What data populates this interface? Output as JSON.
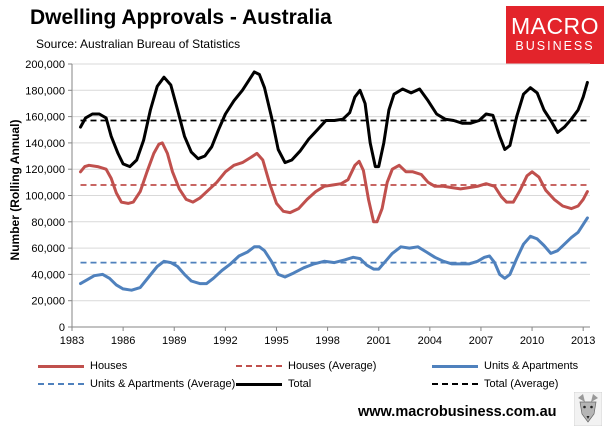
{
  "header": {
    "title": "Dwelling Approvals - Australia",
    "source": "Source: Australian Bureau of Statistics"
  },
  "logo": {
    "line1": "MACRO",
    "line2": "BUSINESS",
    "color": "#e3242b"
  },
  "footer": {
    "url": "www.macrobusiness.com.au"
  },
  "chart_data": {
    "type": "line",
    "ylabel": "Number (Rolling Annual)",
    "xlabel": "",
    "ylim": [
      0,
      200000
    ],
    "xlim": [
      1983,
      2013.4
    ],
    "y_ticks": [
      0,
      20000,
      40000,
      60000,
      80000,
      100000,
      120000,
      140000,
      160000,
      180000,
      200000
    ],
    "y_tick_labels": [
      "0",
      "20,000",
      "40,000",
      "60,000",
      "80,000",
      "100,000",
      "120,000",
      "140,000",
      "160,000",
      "180,000",
      "200,000"
    ],
    "x_ticks": [
      1983,
      1986,
      1989,
      1992,
      1995,
      1998,
      2001,
      2004,
      2007,
      2010,
      2013
    ],
    "x_tick_labels": [
      "1983",
      "1986",
      "1989",
      "1992",
      "1995",
      "1998",
      "2001",
      "2004",
      "2007",
      "2010",
      "2013"
    ],
    "grid": "horizontal",
    "legend_position": "bottom",
    "series": [
      {
        "name": "Houses",
        "color": "#c0504d",
        "style": "solid",
        "points": [
          [
            1983.5,
            118000
          ],
          [
            1983.75,
            122000
          ],
          [
            1984.0,
            123000
          ],
          [
            1984.5,
            122000
          ],
          [
            1985.0,
            120000
          ],
          [
            1985.3,
            113000
          ],
          [
            1985.6,
            102000
          ],
          [
            1985.9,
            95000
          ],
          [
            1986.3,
            94000
          ],
          [
            1986.6,
            95000
          ],
          [
            1987.0,
            103000
          ],
          [
            1987.4,
            118000
          ],
          [
            1987.8,
            132000
          ],
          [
            1988.1,
            139000
          ],
          [
            1988.3,
            140000
          ],
          [
            1988.6,
            132000
          ],
          [
            1988.9,
            118000
          ],
          [
            1989.3,
            105000
          ],
          [
            1989.7,
            97000
          ],
          [
            1990.1,
            95000
          ],
          [
            1990.5,
            98000
          ],
          [
            1991.0,
            104000
          ],
          [
            1991.5,
            110000
          ],
          [
            1992.0,
            118000
          ],
          [
            1992.5,
            123000
          ],
          [
            1993.0,
            125000
          ],
          [
            1993.5,
            129000
          ],
          [
            1993.85,
            132000
          ],
          [
            1994.2,
            127000
          ],
          [
            1994.6,
            109000
          ],
          [
            1995.0,
            94000
          ],
          [
            1995.4,
            88000
          ],
          [
            1995.8,
            87000
          ],
          [
            1996.3,
            90000
          ],
          [
            1996.8,
            97000
          ],
          [
            1997.3,
            103000
          ],
          [
            1997.8,
            107000
          ],
          [
            1998.3,
            108000
          ],
          [
            1998.8,
            109000
          ],
          [
            1999.2,
            112000
          ],
          [
            1999.6,
            123000
          ],
          [
            1999.85,
            126000
          ],
          [
            2000.1,
            119000
          ],
          [
            2000.4,
            97000
          ],
          [
            2000.7,
            80000
          ],
          [
            2000.9,
            80000
          ],
          [
            2001.2,
            90000
          ],
          [
            2001.5,
            110000
          ],
          [
            2001.8,
            120000
          ],
          [
            2002.2,
            123000
          ],
          [
            2002.6,
            118000
          ],
          [
            2003.0,
            118000
          ],
          [
            2003.5,
            116000
          ],
          [
            2003.9,
            110000
          ],
          [
            2004.3,
            107000
          ],
          [
            2004.8,
            107000
          ],
          [
            2005.3,
            106000
          ],
          [
            2005.8,
            105000
          ],
          [
            2006.3,
            106000
          ],
          [
            2006.8,
            107000
          ],
          [
            2007.3,
            109000
          ],
          [
            2007.8,
            107000
          ],
          [
            2008.2,
            99000
          ],
          [
            2008.5,
            95000
          ],
          [
            2008.9,
            95000
          ],
          [
            2009.3,
            104000
          ],
          [
            2009.7,
            115000
          ],
          [
            2010.0,
            118000
          ],
          [
            2010.4,
            114000
          ],
          [
            2010.8,
            104000
          ],
          [
            2011.3,
            97000
          ],
          [
            2011.8,
            92000
          ],
          [
            2012.3,
            90000
          ],
          [
            2012.7,
            92000
          ],
          [
            2013.0,
            97000
          ],
          [
            2013.25,
            103000
          ]
        ]
      },
      {
        "name": "Houses (Average)",
        "color": "#c0504d",
        "style": "dashed",
        "points": [
          [
            1983.5,
            108000
          ],
          [
            2013.25,
            108000
          ]
        ]
      },
      {
        "name": "Units & Apartments",
        "color": "#4f81bd",
        "style": "solid",
        "points": [
          [
            1983.5,
            33000
          ],
          [
            1983.9,
            36000
          ],
          [
            1984.3,
            39000
          ],
          [
            1984.8,
            40000
          ],
          [
            1985.2,
            37000
          ],
          [
            1985.6,
            32000
          ],
          [
            1986.0,
            29000
          ],
          [
            1986.5,
            28000
          ],
          [
            1987.0,
            30000
          ],
          [
            1987.5,
            38000
          ],
          [
            1988.0,
            46000
          ],
          [
            1988.4,
            50000
          ],
          [
            1988.8,
            49000
          ],
          [
            1989.2,
            46000
          ],
          [
            1989.6,
            40000
          ],
          [
            1990.0,
            35000
          ],
          [
            1990.5,
            33000
          ],
          [
            1990.9,
            33000
          ],
          [
            1991.3,
            37000
          ],
          [
            1991.8,
            43000
          ],
          [
            1992.3,
            48000
          ],
          [
            1992.8,
            54000
          ],
          [
            1993.3,
            57000
          ],
          [
            1993.7,
            61000
          ],
          [
            1994.0,
            61000
          ],
          [
            1994.3,
            58000
          ],
          [
            1994.7,
            50000
          ],
          [
            1995.1,
            40000
          ],
          [
            1995.5,
            38000
          ],
          [
            1996.0,
            41000
          ],
          [
            1996.6,
            45000
          ],
          [
            1997.2,
            48000
          ],
          [
            1997.8,
            50000
          ],
          [
            1998.4,
            49000
          ],
          [
            1999.0,
            51000
          ],
          [
            1999.5,
            53000
          ],
          [
            1999.9,
            52000
          ],
          [
            2000.3,
            47000
          ],
          [
            2000.7,
            44000
          ],
          [
            2001.0,
            44000
          ],
          [
            2001.4,
            50000
          ],
          [
            2001.8,
            56000
          ],
          [
            2002.3,
            61000
          ],
          [
            2002.8,
            60000
          ],
          [
            2003.3,
            61000
          ],
          [
            2003.8,
            57000
          ],
          [
            2004.3,
            53000
          ],
          [
            2004.8,
            50000
          ],
          [
            2005.3,
            48000
          ],
          [
            2005.8,
            48000
          ],
          [
            2006.3,
            48000
          ],
          [
            2006.8,
            50000
          ],
          [
            2007.2,
            53000
          ],
          [
            2007.5,
            54000
          ],
          [
            2007.8,
            49000
          ],
          [
            2008.1,
            40000
          ],
          [
            2008.4,
            37000
          ],
          [
            2008.7,
            40000
          ],
          [
            2009.1,
            52000
          ],
          [
            2009.5,
            63000
          ],
          [
            2009.9,
            69000
          ],
          [
            2010.3,
            67000
          ],
          [
            2010.7,
            62000
          ],
          [
            2011.1,
            56000
          ],
          [
            2011.5,
            58000
          ],
          [
            2011.9,
            63000
          ],
          [
            2012.3,
            68000
          ],
          [
            2012.7,
            72000
          ],
          [
            2013.0,
            78000
          ],
          [
            2013.25,
            83000
          ]
        ]
      },
      {
        "name": "Units & Apartments (Average)",
        "color": "#4f81bd",
        "style": "dashed",
        "points": [
          [
            1983.5,
            49000
          ],
          [
            2013.25,
            49000
          ]
        ]
      },
      {
        "name": "Total",
        "color": "#000000",
        "style": "solid",
        "points": [
          [
            1983.5,
            152000
          ],
          [
            1983.8,
            159000
          ],
          [
            1984.2,
            162000
          ],
          [
            1984.6,
            162000
          ],
          [
            1985.0,
            159000
          ],
          [
            1985.3,
            145000
          ],
          [
            1985.7,
            132000
          ],
          [
            1986.0,
            124000
          ],
          [
            1986.4,
            122000
          ],
          [
            1986.8,
            127000
          ],
          [
            1987.2,
            142000
          ],
          [
            1987.6,
            165000
          ],
          [
            1988.0,
            183000
          ],
          [
            1988.4,
            190000
          ],
          [
            1988.8,
            184000
          ],
          [
            1989.2,
            165000
          ],
          [
            1989.6,
            145000
          ],
          [
            1990.0,
            133000
          ],
          [
            1990.4,
            128000
          ],
          [
            1990.8,
            130000
          ],
          [
            1991.2,
            137000
          ],
          [
            1991.6,
            150000
          ],
          [
            1992.0,
            162000
          ],
          [
            1992.5,
            172000
          ],
          [
            1993.0,
            180000
          ],
          [
            1993.4,
            188000
          ],
          [
            1993.7,
            194000
          ],
          [
            1994.0,
            192000
          ],
          [
            1994.3,
            182000
          ],
          [
            1994.7,
            160000
          ],
          [
            1995.1,
            135000
          ],
          [
            1995.5,
            125000
          ],
          [
            1995.9,
            127000
          ],
          [
            1996.4,
            134000
          ],
          [
            1996.9,
            143000
          ],
          [
            1997.4,
            150000
          ],
          [
            1997.9,
            157000
          ],
          [
            1998.4,
            157000
          ],
          [
            1998.9,
            158000
          ],
          [
            1999.3,
            163000
          ],
          [
            1999.6,
            175000
          ],
          [
            1999.9,
            180000
          ],
          [
            2000.2,
            170000
          ],
          [
            2000.5,
            140000
          ],
          [
            2000.8,
            122000
          ],
          [
            2001.0,
            122000
          ],
          [
            2001.3,
            140000
          ],
          [
            2001.6,
            165000
          ],
          [
            2001.9,
            177000
          ],
          [
            2002.4,
            181000
          ],
          [
            2002.9,
            178000
          ],
          [
            2003.4,
            181000
          ],
          [
            2003.9,
            172000
          ],
          [
            2004.4,
            162000
          ],
          [
            2004.9,
            158000
          ],
          [
            2005.4,
            157000
          ],
          [
            2005.9,
            155000
          ],
          [
            2006.4,
            155000
          ],
          [
            2006.9,
            157000
          ],
          [
            2007.3,
            162000
          ],
          [
            2007.7,
            161000
          ],
          [
            2008.1,
            145000
          ],
          [
            2008.4,
            135000
          ],
          [
            2008.7,
            138000
          ],
          [
            2009.1,
            160000
          ],
          [
            2009.5,
            177000
          ],
          [
            2009.9,
            182000
          ],
          [
            2010.3,
            178000
          ],
          [
            2010.7,
            165000
          ],
          [
            2011.1,
            157000
          ],
          [
            2011.5,
            148000
          ],
          [
            2011.9,
            152000
          ],
          [
            2012.3,
            158000
          ],
          [
            2012.7,
            165000
          ],
          [
            2013.0,
            175000
          ],
          [
            2013.25,
            186000
          ]
        ]
      },
      {
        "name": "Total (Average)",
        "color": "#000000",
        "style": "dashed",
        "points": [
          [
            1983.5,
            157000
          ],
          [
            2013.25,
            157000
          ]
        ]
      }
    ]
  }
}
